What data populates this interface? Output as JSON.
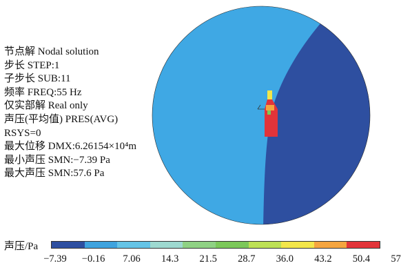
{
  "info_lines": [
    "节点解  Nodal solution",
    "步长  STEP:1",
    "子步长  SUB:11",
    "频率  FREQ:55 Hz",
    "仅实部解  Real only",
    "声压(平均值)  PRES(AVG)",
    "RSYS=0",
    "最大位移  DMX:6.26154×10⁴m",
    "最小声压  SMN:−7.39 Pa",
    "最大声压  SMN:57.6 Pa"
  ],
  "legend": {
    "title": "声压/Pa",
    "ticks": [
      "−7.39",
      "−0.16",
      "7.06",
      "14.3",
      "21.5",
      "28.7",
      "36.0",
      "43.2",
      "50.4",
      "57.6"
    ],
    "colors": [
      "#2e4fa0",
      "#3fa3de",
      "#65c4e6",
      "#9ed9d0",
      "#8fd184",
      "#7cc85a",
      "#bde055",
      "#f3e64a",
      "#f5a540",
      "#e2343a"
    ]
  },
  "domain_colors": {
    "outer_left": "#3fa8e4",
    "outer_right": "#2e4fa0",
    "outline": "#2a2a2a"
  }
}
